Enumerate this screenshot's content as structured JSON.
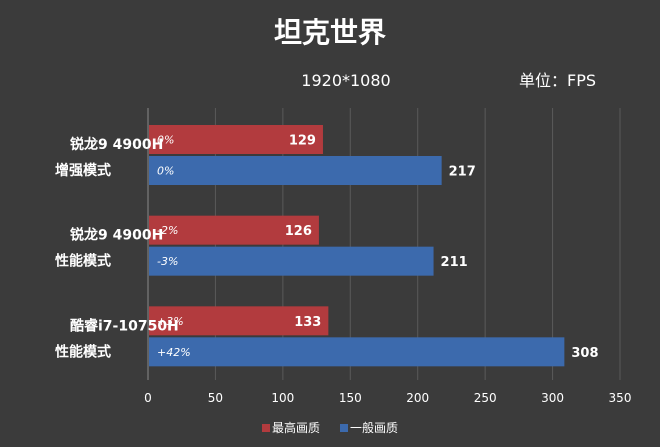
{
  "chart_data": {
    "type": "bar",
    "orientation": "horizontal",
    "title": "坦克世界",
    "subtitle": "1920*1080",
    "unit": "单位：FPS",
    "categories": [
      [
        "锐龙9 4900H",
        "增强模式"
      ],
      [
        "锐龙9 4900H",
        "性能模式"
      ],
      [
        "酷睿i7-10750H",
        "性能模式"
      ]
    ],
    "series": [
      {
        "name": "最高画质",
        "color": "#b23b3e",
        "values": [
          129,
          126,
          133
        ],
        "labels": [
          "0%",
          "-2%",
          "+3%"
        ]
      },
      {
        "name": "一般画质",
        "color": "#3c6aad",
        "values": [
          217,
          211,
          308
        ],
        "labels": [
          "0%",
          "-3%",
          "+42%"
        ]
      }
    ],
    "xlim": [
      0,
      350
    ],
    "xticks": [
      0,
      50,
      100,
      150,
      200,
      250,
      300,
      350
    ],
    "grid": true,
    "legend_position": "bottom"
  }
}
